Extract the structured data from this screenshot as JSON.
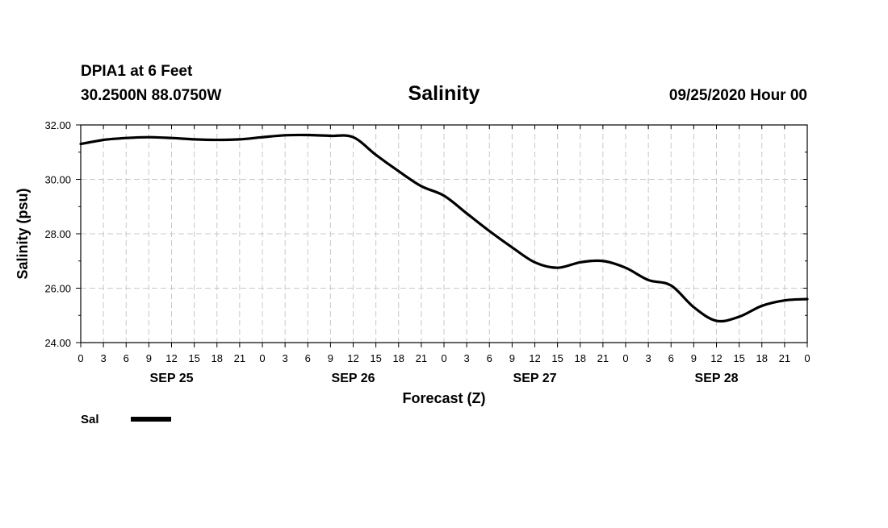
{
  "header": {
    "station": "DPIA1 at 6 Feet",
    "location": "30.2500N 88.0750W",
    "issued": "09/25/2020 Hour 00"
  },
  "chart_data": {
    "type": "line",
    "title": "Salinity",
    "xlabel": "Forecast (Z)",
    "ylabel": "Salinity (psu)",
    "xlim": [
      0,
      96
    ],
    "ylim": [
      24,
      32
    ],
    "ytick_values": [
      24,
      26,
      28,
      30,
      32
    ],
    "ytick_labels": [
      "24.00",
      "26.00",
      "28.00",
      "30.00",
      "32.00"
    ],
    "xtick_hours": [
      0,
      3,
      6,
      9,
      12,
      15,
      18,
      21,
      24,
      27,
      30,
      33,
      36,
      39,
      42,
      45,
      48,
      51,
      54,
      57,
      60,
      63,
      66,
      69,
      72,
      75,
      78,
      81,
      84,
      87,
      90,
      93,
      96
    ],
    "xtick_labels": [
      "0",
      "3",
      "6",
      "9",
      "12",
      "15",
      "18",
      "21",
      "0",
      "3",
      "6",
      "9",
      "12",
      "15",
      "18",
      "21",
      "0",
      "3",
      "6",
      "9",
      "12",
      "15",
      "18",
      "21",
      "0",
      "3",
      "6",
      "9",
      "12",
      "15",
      "18",
      "21",
      "0"
    ],
    "day_labels": [
      {
        "label": "SEP 25",
        "hour": 12
      },
      {
        "label": "SEP 26",
        "hour": 36
      },
      {
        "label": "SEP 27",
        "hour": 60
      },
      {
        "label": "SEP 28",
        "hour": 84
      }
    ],
    "grid": true,
    "series": [
      {
        "name": "Sal",
        "color": "#000000",
        "x": [
          0,
          3,
          6,
          9,
          12,
          15,
          18,
          21,
          24,
          27,
          30,
          33,
          36,
          39,
          42,
          45,
          48,
          51,
          54,
          57,
          60,
          63,
          66,
          69,
          72,
          75,
          78,
          81,
          84,
          87,
          90,
          93,
          96
        ],
        "values": [
          31.3,
          31.45,
          31.52,
          31.55,
          31.52,
          31.47,
          31.45,
          31.47,
          31.55,
          31.62,
          31.63,
          31.6,
          31.55,
          30.9,
          30.3,
          29.75,
          29.4,
          28.75,
          28.1,
          27.5,
          26.95,
          26.75,
          26.95,
          27.0,
          26.75,
          26.3,
          26.1,
          25.3,
          24.8,
          24.95,
          25.35,
          25.55,
          25.6
        ]
      }
    ],
    "legend": {
      "position": "bottom-left",
      "entries": [
        "Sal"
      ]
    }
  }
}
